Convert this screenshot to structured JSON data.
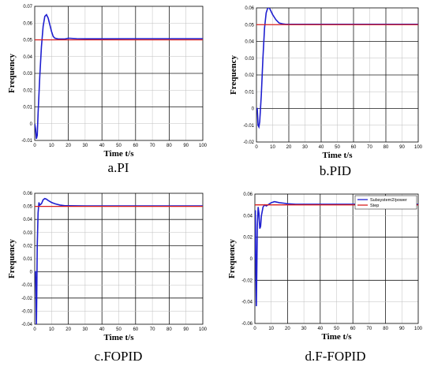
{
  "colors": {
    "response": "#1f1fd0",
    "step": "#d81e1e",
    "grid": "#000000"
  },
  "chart_data": [
    {
      "type": "line",
      "caption": "a.PI",
      "xlabel": "Time t/s",
      "ylabel": "Frequency",
      "xlim": [
        0,
        100
      ],
      "ylim": [
        -0.01,
        0.07
      ],
      "xticks": [
        0,
        10,
        20,
        30,
        40,
        50,
        60,
        70,
        80,
        90,
        100
      ],
      "yticks": [
        -0.01,
        0,
        0.01,
        0.02,
        0.03,
        0.04,
        0.05,
        0.06,
        0.07
      ],
      "ytick_labels": [
        "-0.01",
        "0",
        "0.01",
        "0.02",
        "0.03",
        "0.04",
        "0.05",
        "0.06",
        "0.07"
      ],
      "grid": true,
      "series": [
        {
          "x": [
            0,
            0.5,
            1,
            1.5,
            2,
            3,
            4,
            5,
            6,
            7,
            8,
            9,
            10,
            11,
            12,
            14,
            16,
            18,
            20,
            25,
            30,
            40,
            60,
            80,
            100
          ],
          "y": [
            0,
            -0.003,
            -0.009,
            -0.007,
            0.006,
            0.028,
            0.046,
            0.058,
            0.064,
            0.065,
            0.063,
            0.059,
            0.055,
            0.052,
            0.051,
            0.0505,
            0.0505,
            0.0505,
            0.051,
            0.0507,
            0.0506,
            0.0506,
            0.0507,
            0.0507,
            0.0507
          ]
        },
        {
          "x": [
            0,
            100
          ],
          "y": [
            0.05,
            0.05
          ]
        }
      ]
    },
    {
      "type": "line",
      "caption": "b.PID",
      "xlabel": "Time t/s",
      "ylabel": "Frequency",
      "xlim": [
        0,
        100
      ],
      "ylim": [
        -0.02,
        0.06
      ],
      "xticks": [
        0,
        10,
        20,
        30,
        40,
        50,
        60,
        70,
        80,
        90,
        100
      ],
      "yticks": [
        -0.02,
        -0.01,
        0,
        0.01,
        0.02,
        0.03,
        0.04,
        0.05,
        0.06
      ],
      "ytick_labels": [
        "-0.02",
        "-0.01",
        "0",
        "0.01",
        "0.02",
        "0.03",
        "0.04",
        "0.05",
        "0.06"
      ],
      "grid": true,
      "series": [
        {
          "x": [
            0,
            0.5,
            1,
            1.5,
            2,
            3,
            4,
            5,
            6,
            7,
            8,
            9,
            10,
            12,
            14,
            16,
            18,
            20,
            30,
            50,
            70,
            100
          ],
          "y": [
            0,
            0,
            -0.01,
            -0.011,
            -0.008,
            0.008,
            0.03,
            0.048,
            0.057,
            0.06,
            0.06,
            0.058,
            0.056,
            0.053,
            0.051,
            0.0505,
            0.0502,
            0.0502,
            0.0502,
            0.0502,
            0.0502,
            0.0502
          ]
        },
        {
          "x": [
            0,
            100
          ],
          "y": [
            0.05,
            0.05
          ]
        }
      ]
    },
    {
      "type": "line",
      "caption": "c.FOPID",
      "xlabel": "Time t/s",
      "ylabel": "Frequency",
      "xlim": [
        0,
        100
      ],
      "ylim": [
        -0.04,
        0.06
      ],
      "xticks": [
        0,
        10,
        20,
        30,
        40,
        50,
        60,
        70,
        80,
        90,
        100
      ],
      "yticks": [
        -0.04,
        -0.03,
        -0.02,
        -0.01,
        0,
        0.01,
        0.02,
        0.03,
        0.04,
        0.05,
        0.06
      ],
      "ytick_labels": [
        "-0.04",
        "-0.03",
        "-0.02",
        "-0.01",
        "0",
        "0.01",
        "0.02",
        "0.03",
        "0.04",
        "0.05",
        "0.06"
      ],
      "grid": true,
      "series": [
        {
          "x": [
            0,
            0.5,
            0.8,
            1,
            1.2,
            1.5,
            2,
            2.5,
            3,
            4,
            5,
            6,
            7,
            8,
            10,
            12,
            15,
            18,
            20,
            30,
            50,
            100
          ],
          "y": [
            0,
            0,
            -0.02,
            -0.04,
            -0.02,
            0.02,
            0.045,
            0.053,
            0.051,
            0.052,
            0.055,
            0.056,
            0.0555,
            0.0545,
            0.053,
            0.052,
            0.051,
            0.0505,
            0.0505,
            0.0503,
            0.0503,
            0.0503
          ]
        },
        {
          "x": [
            0,
            100
          ],
          "y": [
            0.05,
            0.05
          ]
        }
      ]
    },
    {
      "type": "line",
      "caption": "d.F-FOPID",
      "xlabel": "Time t/s",
      "ylabel": "Frequency",
      "xlim": [
        0,
        100
      ],
      "ylim": [
        -0.06,
        0.06
      ],
      "xticks": [
        0,
        10,
        20,
        30,
        40,
        50,
        60,
        70,
        80,
        90,
        100
      ],
      "yticks": [
        -0.06,
        -0.04,
        -0.02,
        0,
        0.02,
        0.04,
        0.06
      ],
      "ytick_labels": [
        "-0.06",
        "-0.04",
        "-0.02",
        "0",
        "0.02",
        "0.04",
        "0.06"
      ],
      "grid": true,
      "legend": {
        "position": "top-right",
        "entries": [
          "Subsystem2/power",
          "Step"
        ]
      },
      "series": [
        {
          "name": "Subsystem2/power",
          "x": [
            0,
            0.3,
            0.6,
            0.9,
            1.2,
            1.5,
            2,
            2.5,
            3,
            3.5,
            4,
            5,
            6,
            7,
            8,
            10,
            12,
            15,
            18,
            20,
            25,
            30,
            50,
            100
          ],
          "y": [
            0,
            0.045,
            -0.01,
            -0.044,
            -0.01,
            0.03,
            0.048,
            0.042,
            0.028,
            0.03,
            0.04,
            0.048,
            0.05,
            0.049,
            0.05,
            0.052,
            0.053,
            0.052,
            0.0515,
            0.051,
            0.0505,
            0.0505,
            0.0505,
            0.0505
          ]
        },
        {
          "name": "Step",
          "x": [
            0,
            100
          ],
          "y": [
            0.05,
            0.05
          ]
        }
      ]
    }
  ]
}
